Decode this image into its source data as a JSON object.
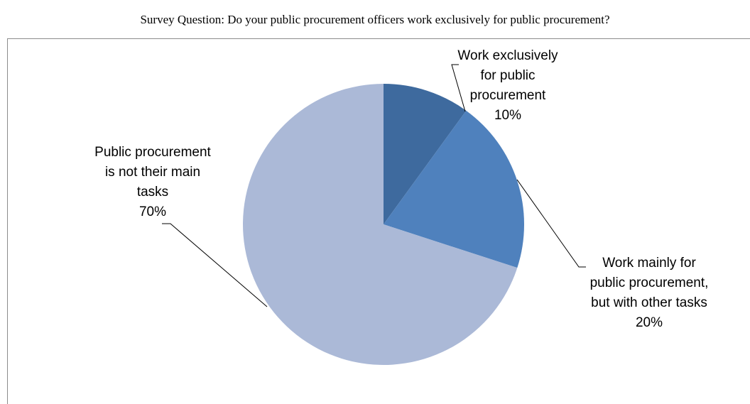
{
  "page_title": "Survey Question: Do your public procurement officers work exclusively for public procurement?",
  "chart_data": {
    "type": "pie",
    "title": "",
    "slices": [
      {
        "label_lines": [
          "Work exclusively",
          "for public",
          "procurement"
        ],
        "value": 10,
        "value_label": "10%",
        "color": "#3e6a9e"
      },
      {
        "label_lines": [
          "Work mainly for",
          "public procurement,",
          "but with other tasks"
        ],
        "value": 20,
        "value_label": "20%",
        "color": "#4f81bd"
      },
      {
        "label_lines": [
          "Public procurement",
          "is not their main",
          "tasks"
        ],
        "value": 70,
        "value_label": "70%",
        "color": "#abb9d7"
      }
    ],
    "legend": "none"
  }
}
